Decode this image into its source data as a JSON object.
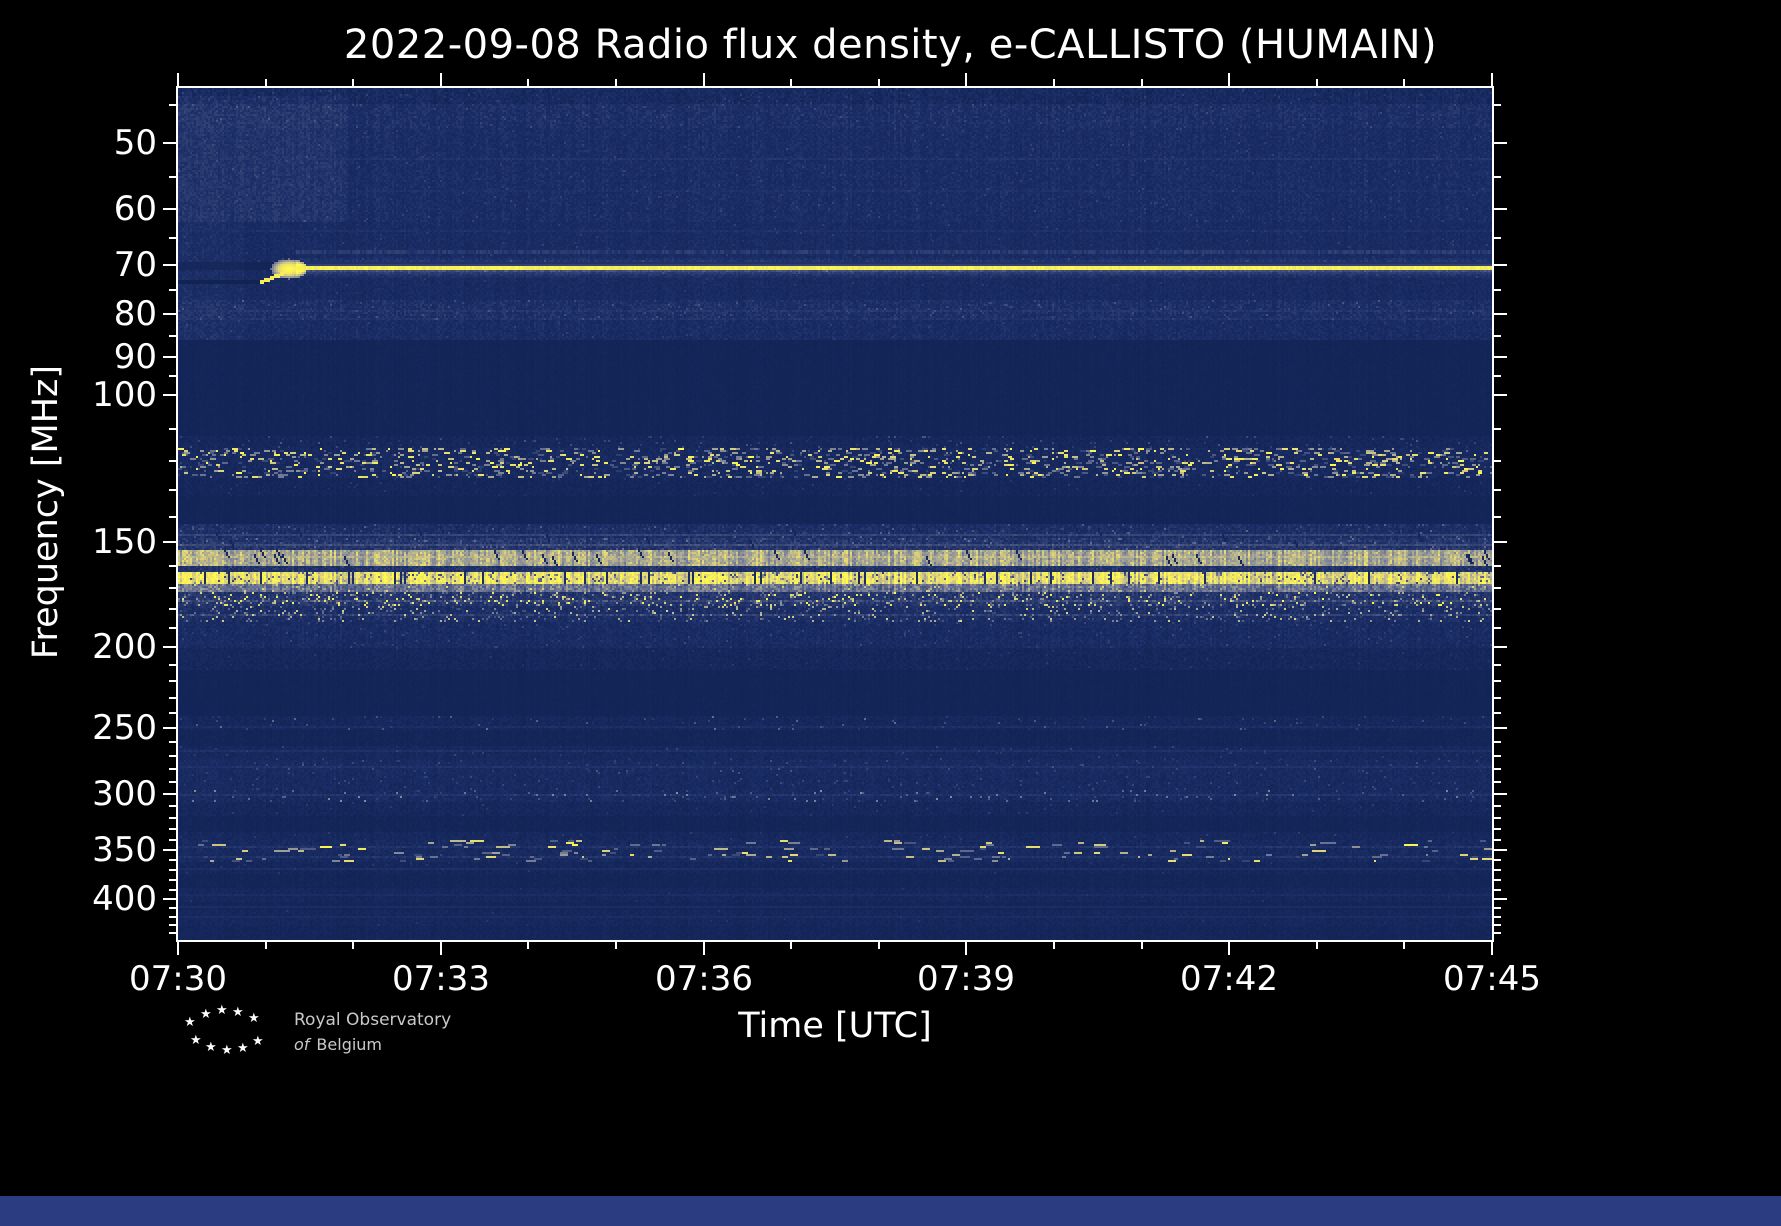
{
  "chart_data": {
    "type": "heatmap",
    "subtype": "radio-spectrogram",
    "title": "2022-09-08 Radio flux density, e-CALLISTO (HUMAIN)",
    "date": "2022-09-08",
    "instrument": "e-CALLISTO",
    "station": "HUMAIN",
    "xlabel": "Time [UTC]",
    "ylabel": "Frequency [MHz]",
    "x_axis": {
      "range_minutes": [
        0,
        15
      ],
      "start_time": "07:30",
      "end_time": "07:45",
      "major": [
        {
          "m": 0,
          "label": "07:30"
        },
        {
          "m": 3,
          "label": "07:33"
        },
        {
          "m": 6,
          "label": "07:36"
        },
        {
          "m": 9,
          "label": "07:39"
        },
        {
          "m": 12,
          "label": "07:42"
        },
        {
          "m": 15,
          "label": "07:45"
        }
      ],
      "minor_minutes": [
        1,
        2,
        4,
        5,
        7,
        8,
        10,
        11,
        13,
        14
      ]
    },
    "y_axis": {
      "scale": "log",
      "inverted": true,
      "range_mhz": [
        43,
        448
      ],
      "major": [
        50,
        60,
        70,
        80,
        90,
        100,
        150,
        200,
        250,
        300,
        350,
        400
      ],
      "minor": [
        45,
        55,
        65,
        75,
        85,
        95,
        110,
        120,
        130,
        140,
        160,
        170,
        180,
        190,
        210,
        220,
        230,
        240,
        260,
        270,
        280,
        290,
        310,
        320,
        330,
        340,
        360,
        370,
        380,
        390,
        410,
        420,
        430,
        440
      ]
    },
    "colormap_stops": [
      [
        0.0,
        "#0e1f4d"
      ],
      [
        0.22,
        "#1c2f68"
      ],
      [
        0.4,
        "#3c4a79"
      ],
      [
        0.58,
        "#6f7896"
      ],
      [
        0.72,
        "#a8a794"
      ],
      [
        0.85,
        "#e3d875"
      ],
      [
        1.0,
        "#fff84f"
      ]
    ],
    "background_level": 0.085,
    "bands": [
      {
        "f": [
          43,
          48
        ],
        "base": 0.21,
        "noise": 0.07,
        "sp": 0.02,
        "smin": 0.28,
        "smax": 0.42
      },
      {
        "f": [
          48,
          62
        ],
        "base": 0.19,
        "noise": 0.06,
        "sp": 0.012,
        "smin": 0.26,
        "smax": 0.38
      },
      {
        "f": [
          62,
          69.3
        ],
        "base": 0.17,
        "noise": 0.05,
        "sp": 0.008,
        "smin": 0.25,
        "smax": 0.35
      },
      {
        "f": [
          70.8,
          77
        ],
        "base": 0.16,
        "noise": 0.05,
        "sp": 0.005,
        "smin": 0.24,
        "smax": 0.32
      },
      {
        "f": [
          77,
          81.5
        ],
        "base": 0.21,
        "noise": 0.07,
        "sp": 0.03,
        "smin": 0.28,
        "smax": 0.45
      },
      {
        "f": [
          81.5,
          86
        ],
        "base": 0.18,
        "noise": 0.06,
        "sp": 0.01,
        "smin": 0.25,
        "smax": 0.35
      },
      {
        "f": [
          86,
          112
        ],
        "base": 0.085,
        "noise": 0.015
      },
      {
        "f": [
          112,
          116
        ],
        "base": 0.12,
        "noise": 0.04,
        "sp": 0.04,
        "smin": 0.2,
        "smax": 0.45
      },
      {
        "f": [
          116,
          126
        ],
        "base": 0.14,
        "noise": 0.05,
        "sp": 0.14,
        "smin": 0.3,
        "smax": 1.0,
        "spw": 2
      },
      {
        "f": [
          126,
          132
        ],
        "base": 0.11,
        "noise": 0.03,
        "sp": 0.01,
        "smin": 0.2,
        "smax": 0.3
      },
      {
        "f": [
          132,
          143
        ],
        "base": 0.085,
        "noise": 0.015
      },
      {
        "f": [
          143,
          148
        ],
        "base": 0.2,
        "noise": 0.07,
        "sp": 0.05,
        "smin": 0.28,
        "smax": 0.5
      },
      {
        "f": [
          148,
          153
        ],
        "base": 0.26,
        "noise": 0.09,
        "sp": 0.07,
        "smin": 0.32,
        "smax": 0.55
      },
      {
        "f": [
          153,
          160
        ],
        "base": 0.72,
        "noise": 0.07,
        "sp": 0.05,
        "smin": 0.6,
        "smax": 0.82
      },
      {
        "f": [
          160,
          163
        ],
        "base": 0.24,
        "noise": 0.08,
        "sp": 0.02,
        "smin": 0.3,
        "smax": 0.45
      },
      {
        "f": [
          163,
          168
        ],
        "base": 0.88,
        "noise": 0.08,
        "sp": 0.1,
        "smin": 0.35,
        "smax": 0.7
      },
      {
        "f": [
          168,
          172
        ],
        "base": 0.55,
        "noise": 0.1,
        "sp": 0.06,
        "smin": 0.6,
        "smax": 0.85
      },
      {
        "f": [
          172,
          179
        ],
        "base": 0.26,
        "noise": 0.08,
        "sp": 0.13,
        "smin": 0.45,
        "smax": 1.0
      },
      {
        "f": [
          179,
          187
        ],
        "base": 0.2,
        "noise": 0.07,
        "sp": 0.1,
        "smin": 0.35,
        "smax": 0.85
      },
      {
        "f": [
          187,
          201
        ],
        "base": 0.17,
        "noise": 0.06,
        "sp": 0.02,
        "smin": 0.25,
        "smax": 0.4
      },
      {
        "f": [
          201,
          213
        ],
        "base": 0.12,
        "noise": 0.04,
        "sp": 0.008,
        "smin": 0.2,
        "smax": 0.3
      },
      {
        "f": [
          213,
          242
        ],
        "base": 0.08,
        "noise": 0.015
      },
      {
        "f": [
          242,
          252
        ],
        "base": 0.12,
        "noise": 0.04,
        "sp": 0.025,
        "smin": 0.22,
        "smax": 0.55
      },
      {
        "f": [
          252,
          263
        ],
        "base": 0.09,
        "noise": 0.02
      },
      {
        "f": [
          263,
          273
        ],
        "base": 0.13,
        "noise": 0.04,
        "sp": 0.015,
        "smin": 0.22,
        "smax": 0.38
      },
      {
        "f": [
          273,
          284
        ],
        "base": 0.16,
        "noise": 0.05,
        "sp": 0.025,
        "smin": 0.24,
        "smax": 0.45
      },
      {
        "f": [
          284,
          296
        ],
        "base": 0.15,
        "noise": 0.05,
        "sp": 0.02,
        "smin": 0.24,
        "smax": 0.42
      },
      {
        "f": [
          296,
          307
        ],
        "base": 0.16,
        "noise": 0.06,
        "sp": 0.035,
        "smin": 0.28,
        "smax": 0.65
      },
      {
        "f": [
          307,
          318
        ],
        "base": 0.12,
        "noise": 0.04,
        "sp": 0.01,
        "smin": 0.2,
        "smax": 0.32
      },
      {
        "f": [
          318,
          332
        ],
        "base": 0.09,
        "noise": 0.02
      },
      {
        "f": [
          332,
          341
        ],
        "base": 0.13,
        "noise": 0.04,
        "sp": 0.015,
        "smin": 0.22,
        "smax": 0.36
      },
      {
        "f": [
          341,
          351
        ],
        "base": 0.15,
        "noise": 0.06,
        "sp": 0.02,
        "smin": 0.4,
        "smax": 1.0,
        "spw": 5
      },
      {
        "f": [
          351,
          361
        ],
        "base": 0.15,
        "noise": 0.05,
        "sp": 0.025,
        "smin": 0.35,
        "smax": 0.9,
        "spw": 3
      },
      {
        "f": [
          361,
          374
        ],
        "base": 0.11,
        "noise": 0.035,
        "sp": 0.008,
        "smin": 0.2,
        "smax": 0.3
      },
      {
        "f": [
          374,
          388
        ],
        "base": 0.09,
        "noise": 0.02
      },
      {
        "f": [
          388,
          404
        ],
        "base": 0.12,
        "noise": 0.035,
        "sp": 0.006,
        "smin": 0.18,
        "smax": 0.28
      },
      {
        "f": [
          404,
          412
        ],
        "base": 0.095,
        "noise": 0.02
      },
      {
        "f": [
          412,
          430
        ],
        "base": 0.12,
        "noise": 0.035,
        "sp": 0.006,
        "smin": 0.18,
        "smax": 0.28
      },
      {
        "f": [
          430,
          448
        ],
        "base": 0.1,
        "noise": 0.025
      }
    ],
    "features": [
      {
        "type": "patch",
        "f": [
          43,
          45
        ],
        "t": [
          0,
          1
        ],
        "dv": -0.06
      },
      {
        "type": "patch",
        "f": [
          44,
          62
        ],
        "t": [
          0,
          0.13
        ],
        "dv": 0.06
      },
      {
        "type": "patch",
        "f": [
          62,
          86
        ],
        "t": [
          0,
          0.05
        ],
        "dv": 0.03
      },
      {
        "type": "hline",
        "f": 52,
        "px": 1,
        "v": 0.3,
        "flicker": 0.5
      },
      {
        "type": "hline",
        "f": 57,
        "px": 1,
        "v": 0.27,
        "flicker": 0.5
      },
      {
        "type": "hline",
        "f": 63.5,
        "px": 1,
        "v": 0.27,
        "flicker": 0.5
      },
      {
        "type": "hline",
        "f": 67.3,
        "px": 2,
        "v": 0.36,
        "flicker": 0.6,
        "t": [
          0.09,
          1
        ]
      },
      {
        "type": "hline",
        "f": 79,
        "px": 1,
        "v": 0.33,
        "flicker": 0.6
      },
      {
        "type": "hline",
        "f": 80.8,
        "px": 1,
        "v": 0.3,
        "flicker": 0.6
      },
      {
        "type": "hline",
        "f": 73,
        "px": 2,
        "v": 0.05,
        "mode": "min",
        "t": [
          0,
          0.068
        ]
      },
      {
        "type": "ramp",
        "f": [
          73,
          70
        ],
        "t": [
          0.062,
          0.092
        ],
        "px": 2,
        "v": 0.95
      },
      {
        "type": "blob",
        "tx": 0.083,
        "f": 70.7,
        "rx": 9,
        "ry": 5,
        "v": 1.0
      },
      {
        "type": "hline",
        "f": 70,
        "px": 2,
        "v": 1.0,
        "t": [
          0.09,
          1
        ],
        "glow": 4,
        "flicker": 0.12
      },
      {
        "type": "hline",
        "f": 147,
        "px": 1,
        "v": 0.42,
        "flicker": 0.4
      },
      {
        "type": "hline",
        "f": 150.5,
        "px": 1,
        "v": 0.46,
        "flicker": 0.4
      },
      {
        "type": "hline",
        "f": 156,
        "px": 1,
        "v": 0.8,
        "flicker": 0.25
      },
      {
        "type": "slashes",
        "f": [
          143,
          153
        ],
        "p": 0.02,
        "len": 4,
        "v": 0.1
      },
      {
        "type": "slashes",
        "f": [
          152.5,
          161
        ],
        "p": 0.035,
        "len": 5,
        "v": 0.12
      },
      {
        "type": "vgaps",
        "f": [
          163,
          168
        ],
        "p": 0.04,
        "w": 1,
        "v": 0.18
      },
      {
        "type": "hline",
        "f": 176,
        "px": 1,
        "v": 0.52,
        "flicker": 0.7
      },
      {
        "type": "hline",
        "f": 183,
        "px": 1,
        "v": 0.44,
        "flicker": 0.7
      },
      {
        "type": "hline",
        "f": 248,
        "px": 1,
        "v": 0.25,
        "flicker": 0.5
      },
      {
        "type": "hline",
        "f": 266,
        "px": 1,
        "v": 0.26,
        "flicker": 0.4
      },
      {
        "type": "hline",
        "f": 278,
        "px": 1,
        "v": 0.28,
        "flicker": 0.4
      },
      {
        "type": "hline",
        "f": 300,
        "px": 1,
        "v": 0.3,
        "flicker": 0.5
      },
      {
        "type": "hline",
        "f": 345,
        "px": 1,
        "v": 0.3,
        "flicker": 0.5
      },
      {
        "type": "hline",
        "f": 356,
        "px": 1,
        "v": 0.3,
        "flicker": 0.5
      },
      {
        "type": "hline",
        "f": 368,
        "px": 1,
        "v": 0.24,
        "flicker": 0.4
      },
      {
        "type": "hline",
        "f": 395,
        "px": 1,
        "v": 0.22,
        "flicker": 0.4
      },
      {
        "type": "hline",
        "f": 408,
        "px": 1,
        "v": 0.21,
        "flicker": 0.3
      },
      {
        "type": "hline",
        "f": 420,
        "px": 1,
        "v": 0.22,
        "flicker": 0.4
      }
    ],
    "annotations": {
      "bright_rfi_line_mhz": 70,
      "speckle_bands_mhz": [
        [
          116,
          126
        ],
        [
          172,
          187
        ],
        [
          341,
          361
        ]
      ],
      "strong_bands_mhz": [
        [
          153,
          160
        ],
        [
          163,
          168
        ]
      ]
    }
  },
  "footer": {
    "logo_line1": "Royal Observatory",
    "logo_line2_italic": "of",
    "logo_line2_rest": "Belgium",
    "star_icon": "★"
  },
  "colors": {
    "figure_background": "#000000",
    "axes_foreground": "#ffffff",
    "spectrum_low": "#0e1f4d",
    "spectrum_high": "#fff84f",
    "bottom_strip": "#2b3d80"
  }
}
